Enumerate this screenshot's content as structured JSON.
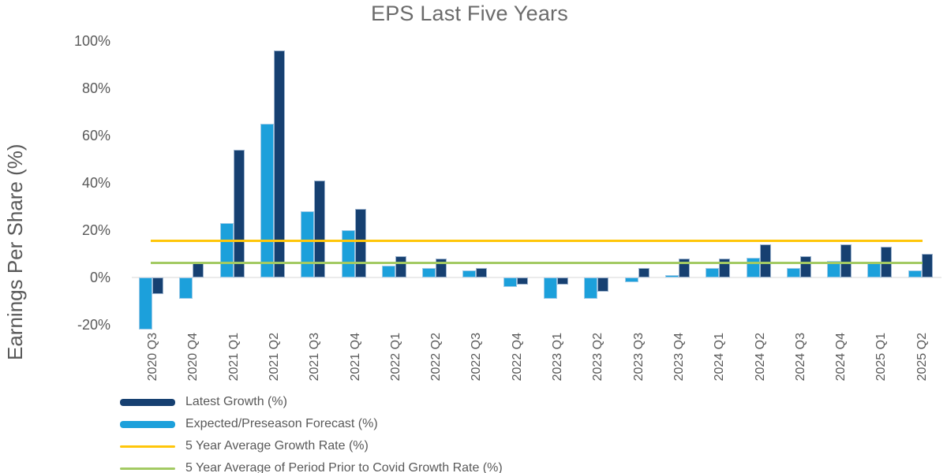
{
  "title": "EPS Last Five Years",
  "y_axis_title": "Earnings Per Share (%)",
  "chart_data": {
    "type": "bar",
    "title": "EPS Last Five Years",
    "ylabel": "Earnings Per Share (%)",
    "xlabel": "",
    "ylim": [
      -25,
      100
    ],
    "y_ticks": [
      100,
      80,
      60,
      40,
      20,
      0,
      -20
    ],
    "y_tick_suffix": "%",
    "grid": false,
    "legend_position": "bottom-left",
    "categories": [
      "2020 Q3",
      "2020 Q4",
      "2021 Q1",
      "2021 Q2",
      "2021 Q3",
      "2021 Q4",
      "2022 Q1",
      "2022 Q2",
      "2022 Q3",
      "2022 Q4",
      "2023 Q1",
      "2023 Q2",
      "2023 Q3",
      "2023 Q4",
      "2024 Q1",
      "2024 Q2",
      "2024 Q3",
      "2024 Q4",
      "2025 Q1",
      "2025 Q2"
    ],
    "series": [
      {
        "name": "Latest Growth (%)",
        "type": "bar",
        "color": "#164071",
        "values": [
          -7,
          6,
          54,
          96,
          41,
          29,
          9,
          8,
          4,
          -3,
          -3,
          -6,
          4,
          8,
          8,
          14,
          9,
          14,
          13,
          10
        ]
      },
      {
        "name": "Expected/Preseason Forecast (%)",
        "type": "bar",
        "color": "#1CA0DB",
        "values": [
          -22,
          -9,
          23,
          65,
          28,
          20,
          5,
          4,
          3,
          -4,
          -9,
          -9,
          -2,
          1,
          4,
          8.5,
          4,
          7,
          6,
          3
        ]
      }
    ],
    "reference_lines": [
      {
        "name": "5 Year Average Growth Rate (%)",
        "value": 15.5,
        "color": "#FFC60A"
      },
      {
        "name": "5 Year Average of Period Prior to Covid Growth Rate (%)",
        "value": 6.3,
        "color": "#A3CA63"
      }
    ]
  },
  "colors": {
    "bar_latest": "#164071",
    "bar_expected": "#1CA0DB",
    "line_avg_growth": "#FFC60A",
    "line_avg_precovid": "#A3CA63",
    "text": "#595959",
    "title_text": "#6B6B6B",
    "axis_line": "#EBEBEB",
    "background": "#FFFFFF"
  }
}
